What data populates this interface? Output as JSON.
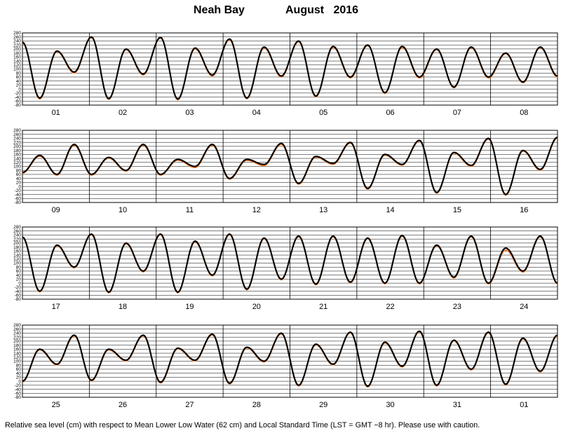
{
  "title": {
    "station": "Neah Bay",
    "month_year": "August   2016"
  },
  "footer": "Relative sea level (cm) with respect to Mean Lower Low Water (62 cm) and Local Standard Time (LST = GMT −8 hr). Please use with caution.",
  "colors": {
    "observed": "#000000",
    "predicted": "#f07820",
    "grid": "#000000",
    "background": "#ffffff"
  },
  "chart_data": [
    {
      "type": "line",
      "x_labels": [
        "01",
        "02",
        "03",
        "04",
        "05",
        "06",
        "07",
        "08"
      ],
      "y_ticks": [
        280,
        260,
        240,
        220,
        200,
        180,
        160,
        140,
        120,
        100,
        80,
        60,
        40,
        20,
        0,
        -20,
        -40,
        -60,
        -80
      ],
      "ylim": [
        -80,
        280
      ],
      "grid": true,
      "series": [
        {
          "name": "observed",
          "role": "observed",
          "extrema": [
            234,
            -45,
            190,
            85,
            260,
            -48,
            200,
            75,
            258,
            -50,
            205,
            70,
            250,
            -45,
            210,
            65,
            240,
            -35,
            213,
            60,
            220,
            -18,
            213,
            60,
            200,
            10,
            210,
            60,
            180,
            35,
            210,
            65
          ]
        },
        {
          "name": "predicted",
          "role": "predicted",
          "extrema": [
            230,
            -50,
            186,
            80,
            256,
            -52,
            196,
            70,
            254,
            -54,
            200,
            65,
            246,
            -49,
            205,
            60,
            236,
            -39,
            208,
            55,
            216,
            -22,
            208,
            55,
            196,
            6,
            206,
            55,
            176,
            31,
            206,
            60
          ]
        }
      ]
    },
    {
      "type": "line",
      "x_labels": [
        "09",
        "10",
        "11",
        "12",
        "13",
        "14",
        "15",
        "16"
      ],
      "y_ticks": [
        280,
        260,
        240,
        220,
        200,
        180,
        160,
        140,
        120,
        100,
        80,
        60,
        40,
        20,
        0,
        -20,
        -40,
        -60,
        -80
      ],
      "ylim": [
        -80,
        280
      ],
      "grid": true,
      "series": [
        {
          "name": "observed",
          "role": "observed",
          "extrema": [
            70,
            155,
            60,
            210,
            60,
            145,
            80,
            210,
            60,
            135,
            100,
            210,
            40,
            135,
            110,
            215,
            15,
            150,
            115,
            220,
            -10,
            160,
            110,
            230,
            -30,
            170,
            105,
            240,
            -40,
            180,
            85,
            245
          ]
        },
        {
          "name": "predicted",
          "role": "predicted",
          "extrema": [
            66,
            151,
            56,
            205,
            56,
            141,
            76,
            205,
            56,
            131,
            94,
            205,
            36,
            130,
            104,
            210,
            11,
            146,
            110,
            216,
            -14,
            156,
            106,
            226,
            -34,
            166,
            100,
            236,
            -44,
            176,
            80,
            241
          ]
        }
      ]
    },
    {
      "type": "line",
      "x_labels": [
        "17",
        "18",
        "19",
        "20",
        "21",
        "22",
        "23",
        "24"
      ],
      "y_ticks": [
        280,
        260,
        240,
        220,
        200,
        180,
        160,
        140,
        120,
        100,
        80,
        60,
        40,
        20,
        0,
        -20,
        -40,
        -60,
        -80
      ],
      "ylim": [
        -80,
        280
      ],
      "grid": true,
      "series": [
        {
          "name": "observed",
          "role": "observed",
          "extrema": [
            230,
            -40,
            190,
            80,
            245,
            -45,
            200,
            60,
            245,
            -45,
            210,
            40,
            245,
            -30,
            225,
            20,
            235,
            -5,
            235,
            5,
            225,
            0,
            238,
            0,
            190,
            30,
            235,
            0,
            175,
            60,
            235,
            0
          ]
        },
        {
          "name": "predicted",
          "role": "predicted",
          "extrema": [
            226,
            -44,
            186,
            76,
            241,
            -49,
            196,
            56,
            241,
            -49,
            206,
            36,
            241,
            -34,
            221,
            16,
            231,
            -9,
            231,
            1,
            221,
            -4,
            234,
            -4,
            186,
            25,
            231,
            -4,
            165,
            55,
            231,
            -4
          ]
        }
      ]
    },
    {
      "type": "line",
      "x_labels": [
        "25",
        "26",
        "27",
        "28",
        "29",
        "30",
        "31",
        "01"
      ],
      "y_ticks": [
        280,
        260,
        240,
        220,
        200,
        180,
        160,
        140,
        120,
        100,
        80,
        60,
        40,
        20,
        0,
        -20,
        -40,
        -60,
        -80
      ],
      "ylim": [
        -80,
        280
      ],
      "grid": true,
      "series": [
        {
          "name": "observed",
          "role": "observed",
          "extrema": [
            0,
            160,
            85,
            230,
            5,
            160,
            105,
            230,
            -5,
            165,
            105,
            235,
            -10,
            170,
            100,
            240,
            -20,
            185,
            85,
            245,
            -25,
            195,
            75,
            250,
            -20,
            205,
            60,
            245,
            -15,
            215,
            50,
            230
          ]
        },
        {
          "name": "predicted",
          "role": "predicted",
          "extrema": [
            -4,
            156,
            81,
            226,
            1,
            156,
            101,
            226,
            -9,
            161,
            101,
            231,
            -14,
            166,
            96,
            236,
            -24,
            181,
            81,
            241,
            -29,
            191,
            71,
            246,
            -24,
            201,
            56,
            241,
            -19,
            211,
            46,
            226
          ]
        }
      ]
    }
  ]
}
